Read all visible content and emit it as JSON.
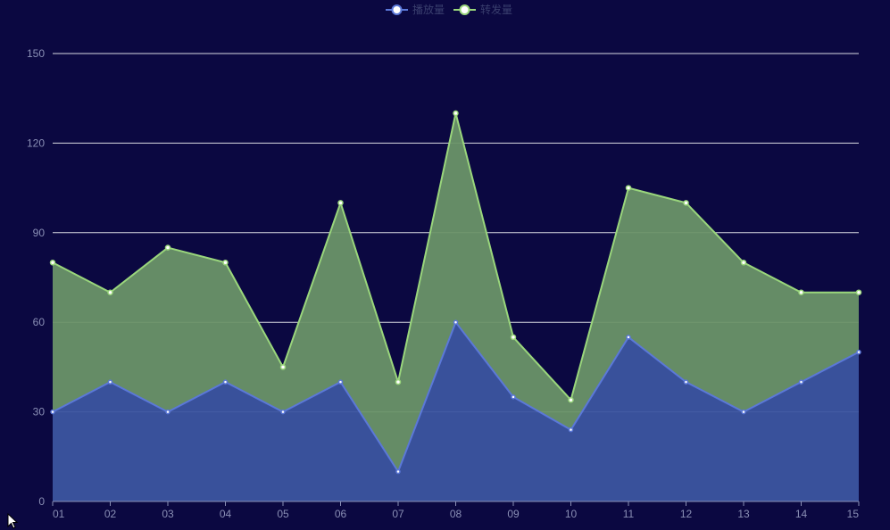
{
  "chart_data": {
    "type": "area",
    "stacked": true,
    "x": [
      "01",
      "02",
      "03",
      "04",
      "05",
      "06",
      "07",
      "08",
      "09",
      "10",
      "11",
      "12",
      "13",
      "14",
      "15"
    ],
    "series": [
      {
        "name": "播放量",
        "values": [
          30,
          40,
          30,
          40,
          30,
          40,
          10,
          60,
          35,
          24,
          55,
          40,
          30,
          40,
          50
        ],
        "line_color": "#5b78d8",
        "fill_color": "#3c55a0"
      },
      {
        "name": "转发量",
        "values": [
          50,
          30,
          55,
          40,
          15,
          60,
          30,
          70,
          20,
          10,
          50,
          60,
          50,
          30,
          20
        ],
        "line_color": "#9ad67c",
        "fill_color": "#6a9368"
      }
    ],
    "ylim": [
      0,
      150
    ],
    "yticks": [
      0,
      30,
      60,
      90,
      120,
      150
    ],
    "grid": true,
    "legend_position": "top-center",
    "background": "#0b0841"
  }
}
